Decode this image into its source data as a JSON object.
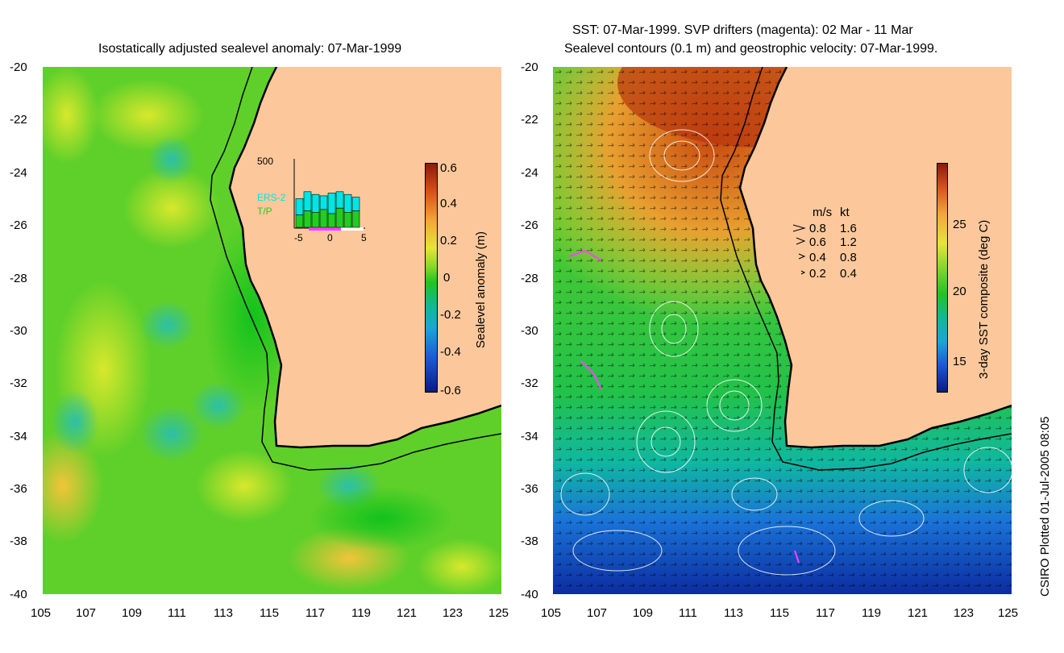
{
  "left_panel": {
    "title": "Isostatically adjusted sealevel anomaly: 07-Mar-1999",
    "colorbar": {
      "label": "Sealevel anomaly (m)",
      "ticks": [
        "0.6",
        "0.4",
        "0.2",
        "0",
        "-0.2",
        "-0.4",
        "-0.6"
      ],
      "range": [
        -0.6,
        0.6
      ]
    },
    "inset": {
      "ymax_label": "500",
      "xtick_labels": [
        "-5",
        "0",
        "5"
      ],
      "legend": [
        "ERS-2",
        "T/P"
      ],
      "colors": {
        "ers2": "#00e5e5",
        "tp": "#22cc22"
      },
      "ers2_counts": [
        210,
        260,
        240,
        230,
        250,
        260,
        240,
        220
      ],
      "tp_counts": [
        90,
        120,
        110,
        130,
        100,
        140,
        110,
        120
      ]
    }
  },
  "right_panel": {
    "title_line1": "SST: 07-Mar-1999. SVP drifters (magenta): 02 Mar - 11 Mar",
    "title_line2": "Sealevel contours (0.1 m) and geostrophic velocity: 07-Mar-1999.",
    "colorbar": {
      "label": "3-day SST composite (deg C)",
      "ticks": [
        "25",
        "20",
        "15"
      ]
    },
    "velocity_legend": {
      "headers": [
        "m/s",
        "kt"
      ],
      "rows": [
        {
          "ms": "0.8",
          "kt": "1.6"
        },
        {
          "ms": "0.6",
          "kt": "1.2"
        },
        {
          "ms": "0.4",
          "kt": "0.8"
        },
        {
          "ms": "0.2",
          "kt": "0.4"
        }
      ]
    }
  },
  "axes": {
    "lat_ticks": [
      "-20",
      "-22",
      "-24",
      "-26",
      "-28",
      "-30",
      "-32",
      "-34",
      "-36",
      "-38",
      "-40"
    ],
    "lon_ticks": [
      "105",
      "107",
      "109",
      "111",
      "113",
      "115",
      "117",
      "119",
      "121",
      "123",
      "125"
    ],
    "lat_range": [
      -40,
      -20
    ],
    "lon_range": [
      105,
      125
    ]
  },
  "credit": "CSIRO Plotted 01-Jul-2005 08:05",
  "colors": {
    "land": "#fcc89b",
    "sea_mid": "#33cc33",
    "coast": "#000000"
  }
}
